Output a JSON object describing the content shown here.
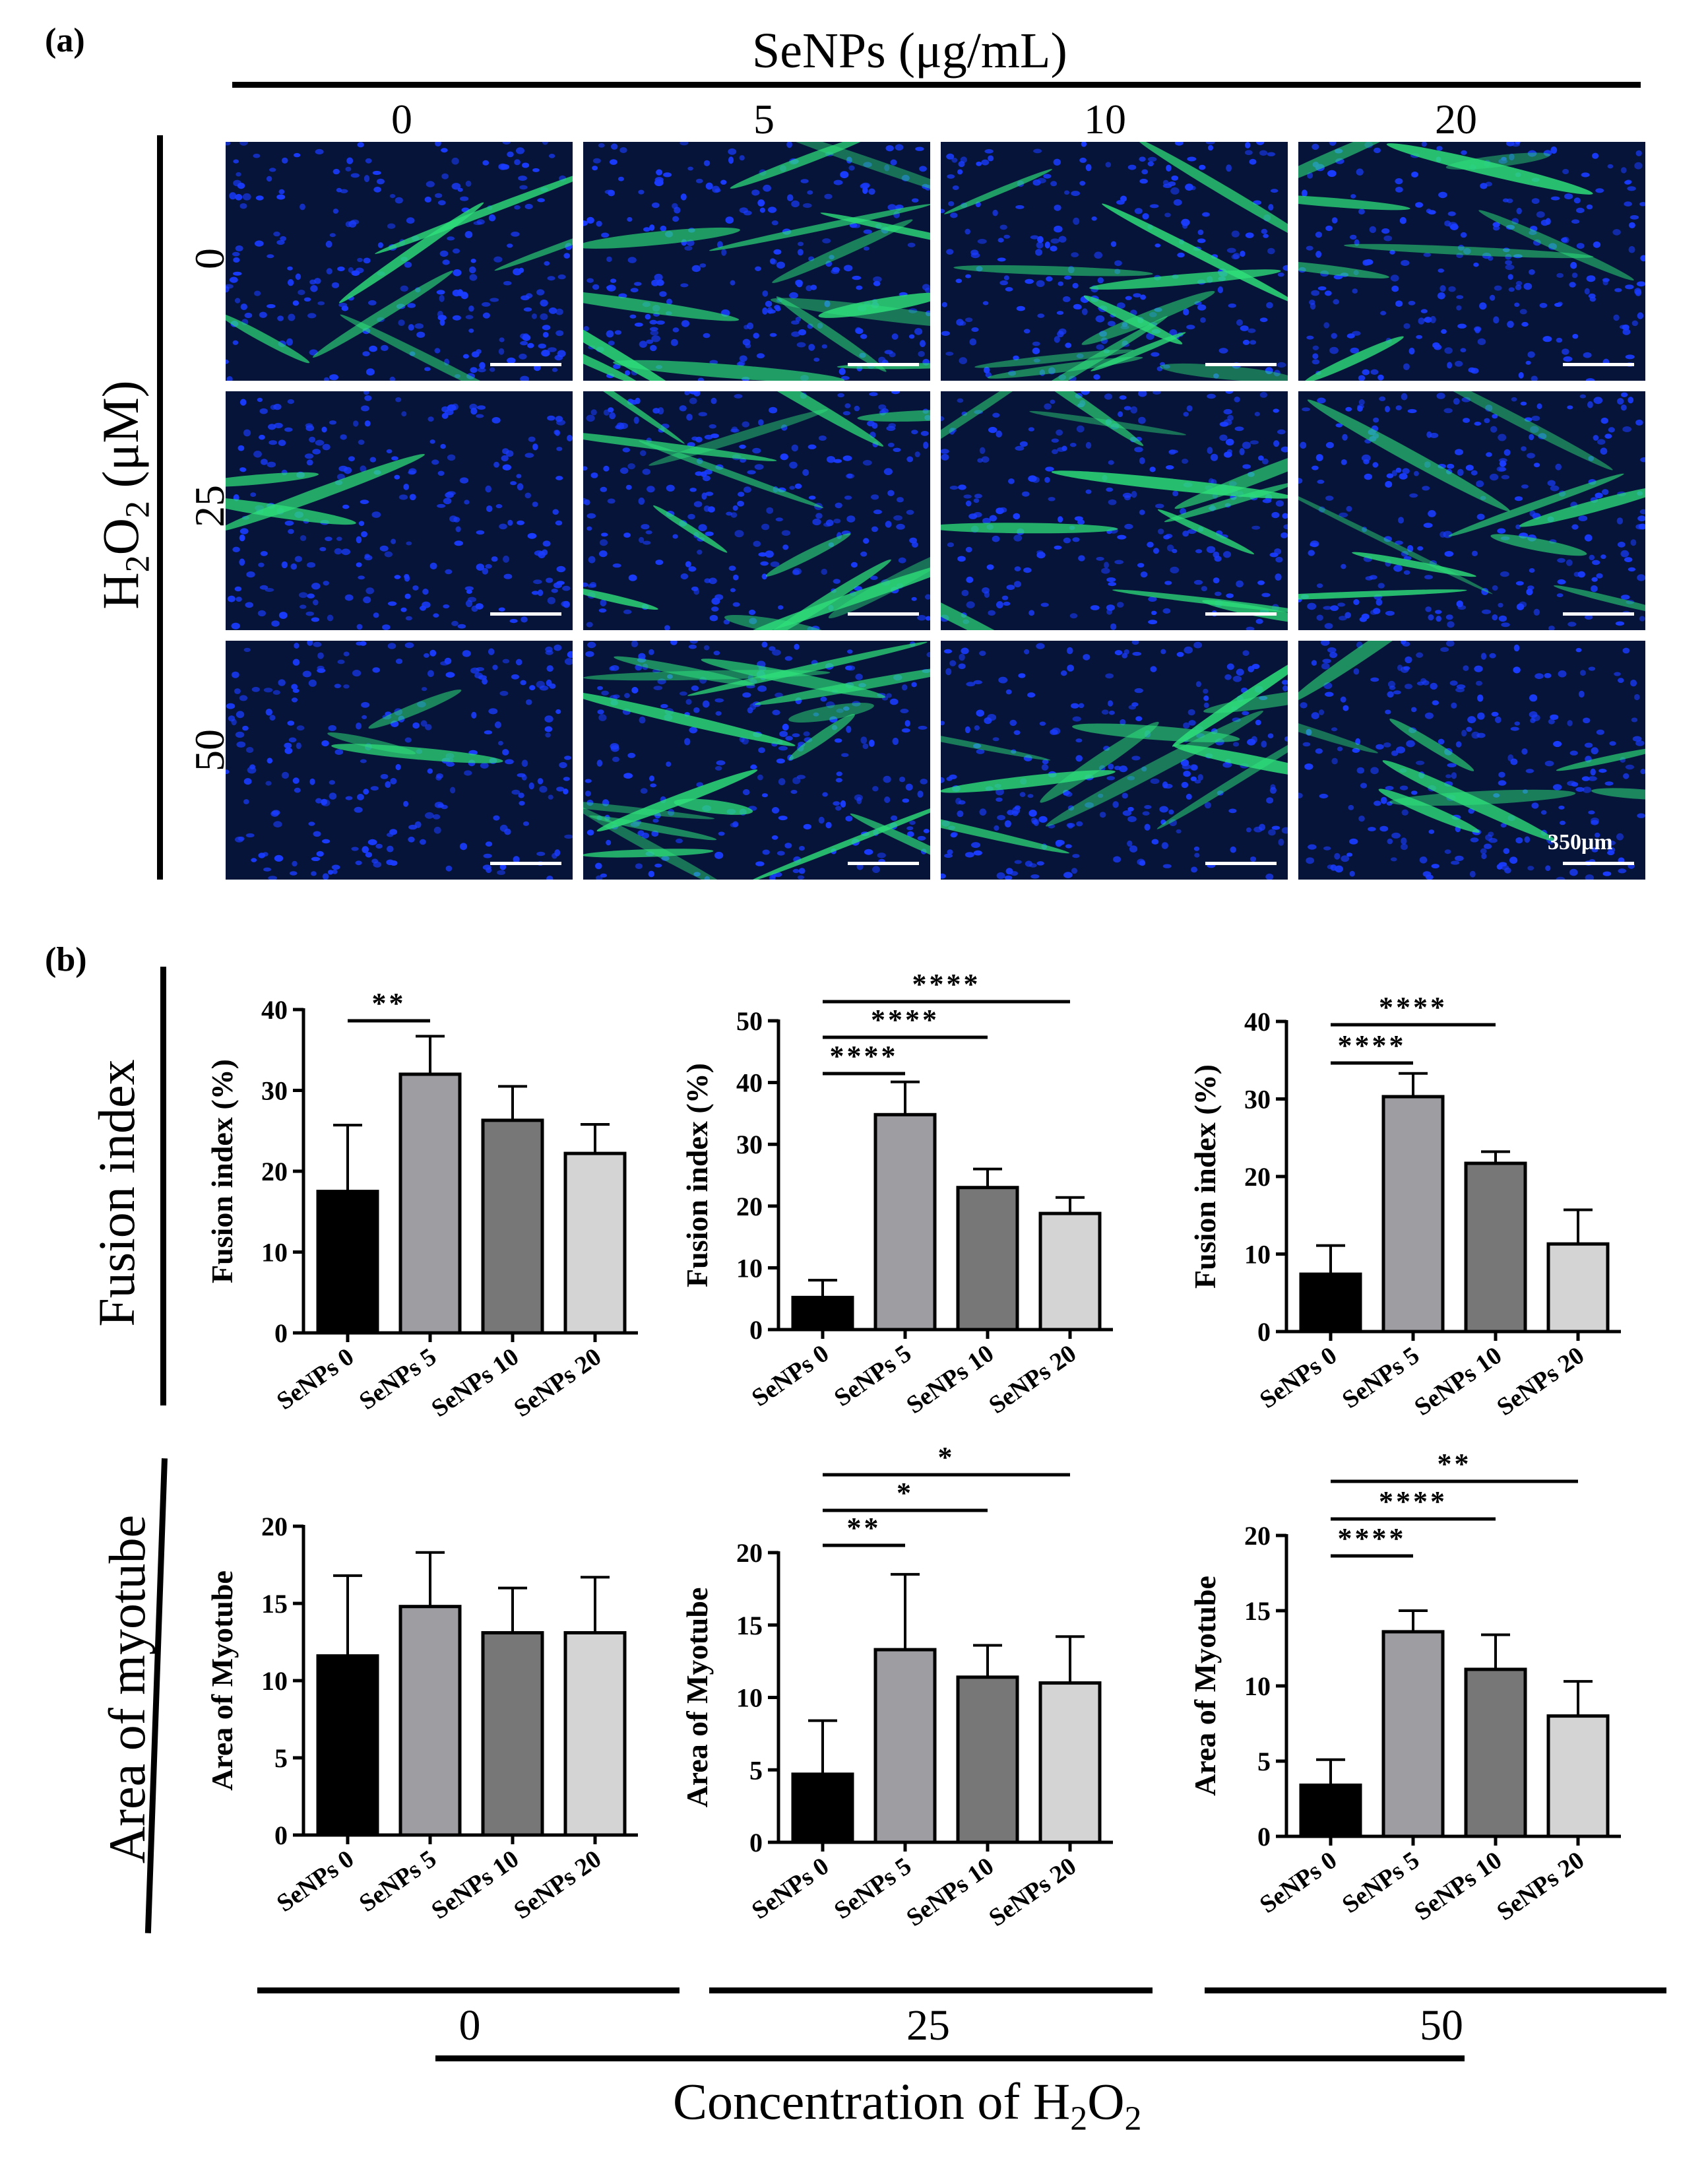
{
  "panel_a": {
    "label": "(a)",
    "senps_title": "SeNPs (μg/mL)",
    "columns": [
      "0",
      "5",
      "10",
      "20"
    ],
    "h2o2_title": {
      "main": "H",
      "sub": "2",
      "main2": "O",
      "sub2": "2",
      "rest": " (μM)"
    },
    "rows": [
      "0",
      "25",
      "50"
    ],
    "scale_bar": "350μm"
  },
  "panel_b": {
    "label": "(b)",
    "row_titles": [
      "Fusion index",
      "Area of myotube"
    ],
    "bottom_groups": [
      "0",
      "25",
      "50"
    ],
    "x_title": {
      "main": "Concentration of H",
      "sub": "2",
      "main2": "O",
      "sub2": "2"
    }
  },
  "colors": {
    "bar_fills": [
      "#000000",
      "#9d9da2",
      "#777777",
      "#d4d4d4"
    ],
    "micrograph_blue": "#1a3cff",
    "micrograph_green": "#2ee07a"
  },
  "chart_data": [
    {
      "type": "bar",
      "row": "fusion",
      "h2o2": "0",
      "categories": [
        "SeNPs 0",
        "SeNPs 5",
        "SeNPs 10",
        "SeNPs 20"
      ],
      "values": [
        17.5,
        32,
        26.3,
        22.2
      ],
      "errors": [
        8.2,
        4.7,
        4.2,
        3.6
      ],
      "ylabel": "Fusion index (%)",
      "ylim": [
        0,
        40
      ],
      "yticks": [
        0,
        10,
        20,
        30,
        40
      ],
      "significance": [
        {
          "from": 0,
          "to": 1,
          "label": "**"
        }
      ]
    },
    {
      "type": "bar",
      "row": "fusion",
      "h2o2": "25",
      "categories": [
        "SeNPs 0",
        "SeNPs 5",
        "SeNPs 10",
        "SeNPs 20"
      ],
      "values": [
        5.2,
        34.8,
        23,
        18.8
      ],
      "errors": [
        2.8,
        5.3,
        3,
        2.6
      ],
      "ylabel": "Fusion index (%)",
      "ylim": [
        0,
        50
      ],
      "yticks": [
        0,
        10,
        20,
        30,
        40,
        50
      ],
      "significance": [
        {
          "from": 0,
          "to": 1,
          "label": "****"
        },
        {
          "from": 0,
          "to": 2,
          "label": "****"
        },
        {
          "from": 0,
          "to": 3,
          "label": "****"
        }
      ]
    },
    {
      "type": "bar",
      "row": "fusion",
      "h2o2": "50",
      "categories": [
        "SeNPs 0",
        "SeNPs 5",
        "SeNPs 10",
        "SeNPs 20"
      ],
      "values": [
        7.4,
        30.3,
        21.7,
        11.3
      ],
      "errors": [
        3.7,
        3,
        1.5,
        4.4
      ],
      "ylabel": "Fusion index (%)",
      "ylim": [
        0,
        40
      ],
      "yticks": [
        0,
        10,
        20,
        30,
        40
      ],
      "significance": [
        {
          "from": 0,
          "to": 1,
          "label": "****"
        },
        {
          "from": 0,
          "to": 2,
          "label": "****"
        }
      ]
    },
    {
      "type": "bar",
      "row": "area",
      "h2o2": "0",
      "categories": [
        "SeNPs 0",
        "SeNPs 5",
        "SeNPs 10",
        "SeNPs 20"
      ],
      "values": [
        11.6,
        14.8,
        13.1,
        13.1
      ],
      "errors": [
        5.2,
        3.5,
        2.9,
        3.6
      ],
      "ylabel": "Area of Myotube",
      "ylim": [
        0,
        20
      ],
      "yticks": [
        0,
        5,
        10,
        15,
        20
      ],
      "significance": []
    },
    {
      "type": "bar",
      "row": "area",
      "h2o2": "25",
      "categories": [
        "SeNPs 0",
        "SeNPs 5",
        "SeNPs 10",
        "SeNPs 20"
      ],
      "values": [
        4.7,
        13.3,
        11.4,
        11
      ],
      "errors": [
        3.7,
        5.2,
        2.2,
        3.2
      ],
      "ylabel": "Area of Myotube",
      "ylim": [
        0,
        20
      ],
      "yticks": [
        0,
        5,
        10,
        15,
        20
      ],
      "significance": [
        {
          "from": 0,
          "to": 1,
          "label": "**"
        },
        {
          "from": 0,
          "to": 2,
          "label": "*"
        },
        {
          "from": 0,
          "to": 3,
          "label": "*"
        }
      ]
    },
    {
      "type": "bar",
      "row": "area",
      "h2o2": "50",
      "categories": [
        "SeNPs 0",
        "SeNPs 5",
        "SeNPs 10",
        "SeNPs 20"
      ],
      "values": [
        3.4,
        13.6,
        11.1,
        8
      ],
      "errors": [
        1.7,
        1.4,
        2.3,
        2.3
      ],
      "ylabel": "Area of Myotube",
      "ylim": [
        0,
        20
      ],
      "yticks": [
        0,
        5,
        10,
        15,
        20
      ],
      "significance": [
        {
          "from": 0,
          "to": 1,
          "label": "****"
        },
        {
          "from": 0,
          "to": 2,
          "label": "****"
        },
        {
          "from": 0,
          "to": 3,
          "label": "**"
        }
      ]
    }
  ]
}
